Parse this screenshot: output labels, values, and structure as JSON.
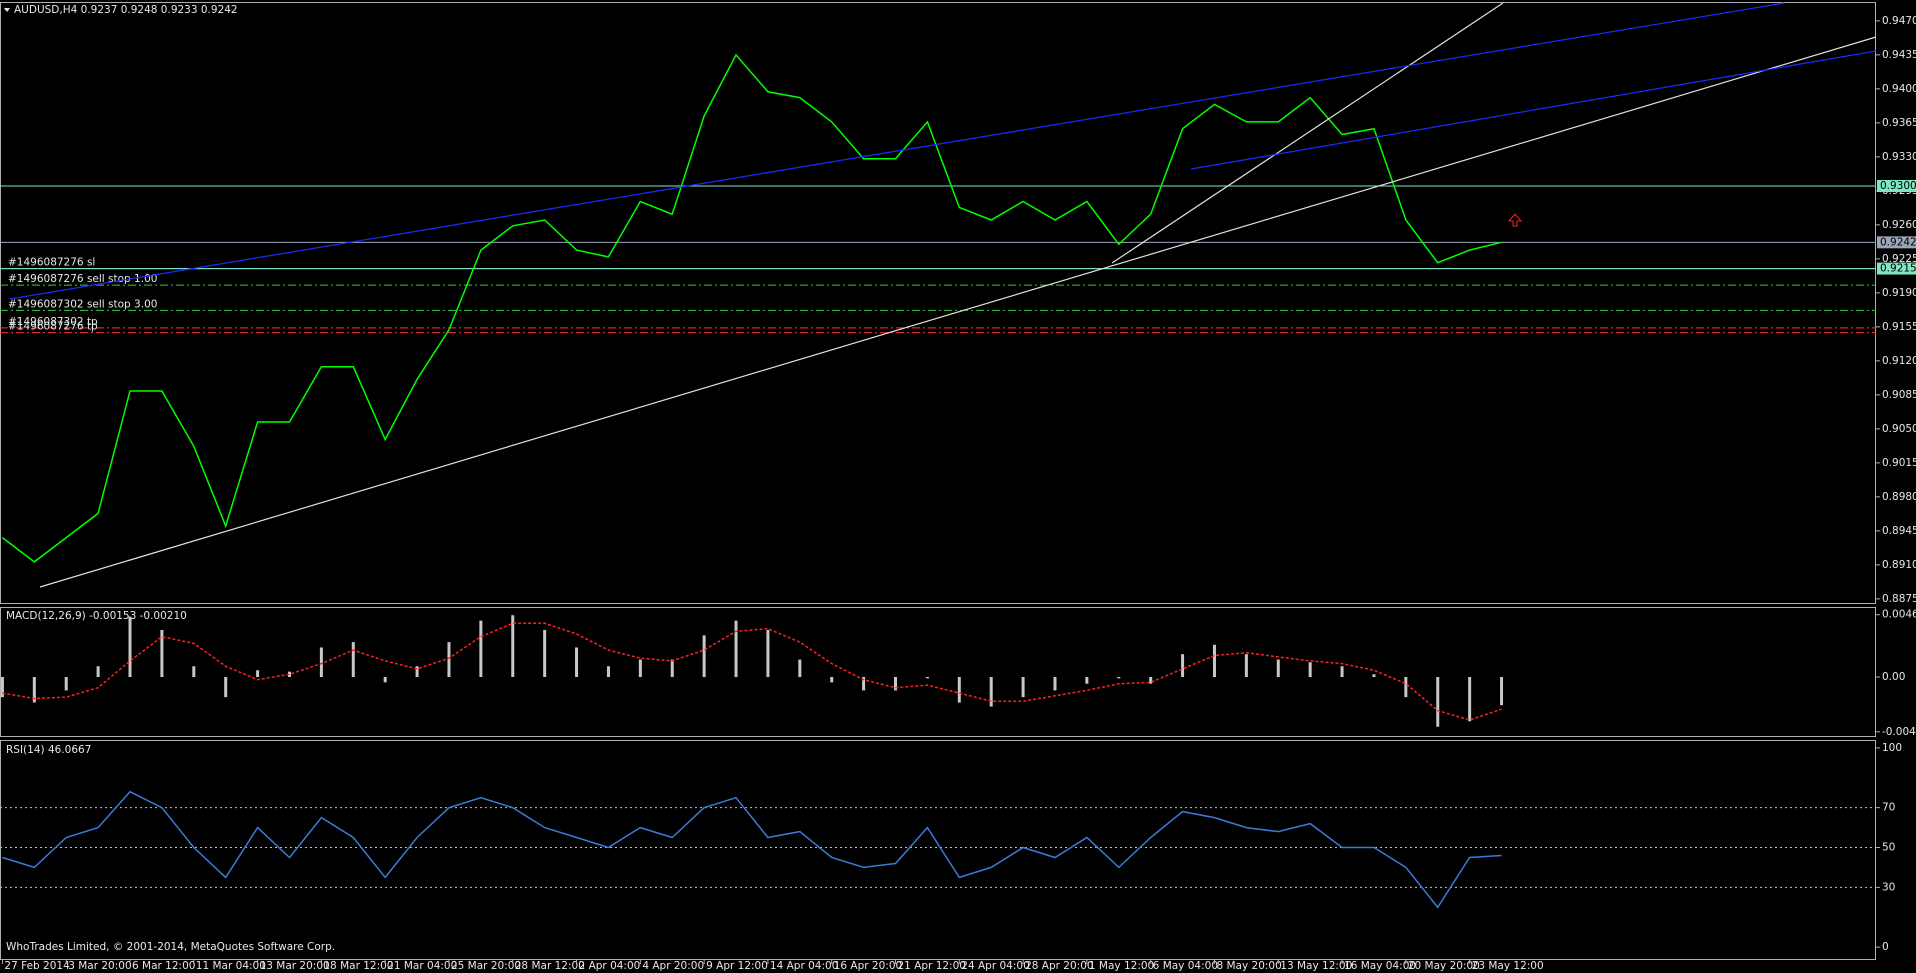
{
  "chart_data": [
    {
      "type": "line",
      "title": "AUDUSD,H4 0.9237 0.9248 0.9233 0.9242",
      "x": [
        0,
        0.5,
        1,
        1.5,
        2,
        2.5,
        3,
        3.5,
        4,
        4.5,
        5,
        5.5,
        6,
        6.5,
        7,
        7.5,
        8,
        8.5,
        9,
        9.5,
        10,
        10.5,
        11,
        11.5,
        12,
        12.5,
        13,
        13.5,
        14,
        14.5,
        15,
        15.5,
        16,
        16.5,
        17,
        17.5,
        18,
        18.5,
        19,
        19.5,
        20,
        20.5,
        21,
        21.5,
        22,
        22.5,
        23,
        23.5
      ],
      "series": [
        {
          "color": "#00ff00",
          "values": [
            0.8938,
            0.8913,
            0.8938,
            0.8963,
            0.9089,
            0.9089,
            0.9032,
            0.895,
            0.9057,
            0.9057,
            0.9114,
            0.9114,
            0.9039,
            0.9101,
            0.9152,
            0.9234,
            0.9259,
            0.9265,
            0.9234,
            0.9227,
            0.9284,
            0.9271,
            0.9372,
            0.9435,
            0.9397,
            0.9391,
            0.9366,
            0.9328,
            0.9328,
            0.9366,
            0.9278,
            0.9265,
            0.9284,
            0.9265,
            0.9284,
            0.924,
            0.9271,
            0.9359,
            0.9384,
            0.9366,
            0.9366,
            0.9391,
            0.9353,
            0.9359,
            0.9265,
            0.9221,
            0.9234,
            0.9242
          ]
        }
      ],
      "xlim": [
        -0.038,
        29.37
      ],
      "ylim": [
        0.887,
        0.9489
      ],
      "yticks": [
        0.8875,
        {
          "value": 0.891,
          "label": "0.8910"
        },
        0.8945,
        {
          "value": 0.898,
          "label": "0.8980"
        },
        0.9015,
        {
          "value": 0.905,
          "label": "0.9050"
        },
        0.9085,
        {
          "value": 0.912,
          "label": "0.9120"
        },
        0.9155,
        {
          "value": 0.919,
          "label": "0.9190"
        },
        0.9225,
        {
          "value": 0.926,
          "label": "0.9260"
        },
        0.9295,
        {
          "value": 0.933,
          "label": "0.9330"
        },
        0.9365,
        {
          "value": 0.94,
          "label": "0.9400"
        },
        0.9435,
        {
          "value": 0.947,
          "label": "0.9470"
        }
      ],
      "levels": [
        {
          "value": 0.93,
          "label": "0.9300",
          "color": "#7fe6c4"
        },
        {
          "value": 0.9242,
          "label": "0.9242",
          "color": "#9aa6b8"
        },
        {
          "value": 0.9215,
          "label": "0.9215",
          "color": "#7fe6c4"
        }
      ],
      "orders": [
        {
          "label": "#1496087276 sl",
          "value": 0.9215,
          "color": "#7fe6c4",
          "style": "solid"
        },
        {
          "label": "#1496087276 sell stop 1.00",
          "value": 0.9198,
          "color": "#32cd32",
          "style": "dashed"
        },
        {
          "label": "#1496087302 sell stop 3.00",
          "value": 0.9172,
          "color": "#32cd32",
          "style": "dashed"
        },
        {
          "label": "#1496087302 tp",
          "value": 0.9154,
          "color": "#ff3030",
          "style": "dashed"
        },
        {
          "label": "#1496087276 tp",
          "value": 0.9149,
          "color": "#ff3030",
          "style": "dashed"
        }
      ]
    },
    {
      "type": "macd",
      "title": "MACD(12,26,9) -0.00153 -0.00210",
      "x": [
        0,
        0.5,
        1,
        1.5,
        2,
        2.5,
        3,
        3.5,
        4,
        4.5,
        5,
        5.5,
        6,
        6.5,
        7,
        7.5,
        8,
        8.5,
        9,
        9.5,
        10,
        10.5,
        11,
        11.5,
        12,
        12.5,
        13,
        13.5,
        14,
        14.5,
        15,
        15.5,
        16,
        16.5,
        17,
        17.5,
        18,
        18.5,
        19,
        19.5,
        20,
        20.5,
        21,
        21.5,
        22,
        22.5,
        23,
        23.5
      ],
      "series": [
        {
          "kind": "histogram",
          "color": "#c8c8c8",
          "values": [
            -0.0015,
            -0.0019,
            -0.001,
            0.0008,
            0.0045,
            0.0035,
            0.0008,
            -0.0015,
            0.0005,
            0.0004,
            0.0022,
            0.0026,
            -0.0004,
            0.0008,
            0.0026,
            0.0042,
            0.0046,
            0.0035,
            0.0022,
            0.0008,
            0.0013,
            0.0013,
            0.0031,
            0.0042,
            0.0035,
            0.0013,
            -0.0004,
            -0.001,
            -0.001,
            -0.0001,
            -0.0019,
            -0.0022,
            -0.0015,
            -0.001,
            -0.0005,
            -0.0001,
            -0.0005,
            0.0017,
            0.0024,
            0.0017,
            0.0013,
            0.0011,
            0.0008,
            0.0002,
            -0.0015,
            -0.0037,
            -0.0033,
            -0.0021
          ]
        },
        {
          "kind": "signal",
          "color": "#ff2020",
          "values": [
            -0.0012,
            -0.0016,
            -0.0015,
            -0.0008,
            0.0012,
            0.003,
            0.0025,
            0.0008,
            -0.0002,
            0.0002,
            0.001,
            0.002,
            0.0012,
            0.0006,
            0.0014,
            0.003,
            0.004,
            0.004,
            0.0032,
            0.002,
            0.0014,
            0.0012,
            0.002,
            0.0034,
            0.0036,
            0.0026,
            0.001,
            -0.0002,
            -0.0008,
            -0.0006,
            -0.0012,
            -0.0018,
            -0.0018,
            -0.0014,
            -0.001,
            -0.0005,
            -0.0004,
            0.0006,
            0.0016,
            0.0018,
            0.0015,
            0.0012,
            0.001,
            0.0005,
            -0.0005,
            -0.0025,
            -0.0032,
            -0.0024
          ]
        }
      ],
      "xlim": [
        -0.038,
        29.37
      ],
      "ylim": [
        -0.00446,
        0.00519
      ],
      "yticks": [
        0.00464,
        {
          "value": 0,
          "label": "0.00"
        },
        -0.00408
      ]
    },
    {
      "type": "rsi",
      "title": "RSI(14) 46.0667",
      "x": [
        0,
        0.5,
        1,
        1.5,
        2,
        2.5,
        3,
        3.5,
        4,
        4.5,
        5,
        5.5,
        6,
        6.5,
        7,
        7.5,
        8,
        8.5,
        9,
        9.5,
        10,
        10.5,
        11,
        11.5,
        12,
        12.5,
        13,
        13.5,
        14,
        14.5,
        15,
        15.5,
        16,
        16.5,
        17,
        17.5,
        18,
        18.5,
        19,
        19.5,
        20,
        20.5,
        21,
        21.5,
        22,
        22.5,
        23,
        23.5
      ],
      "series": [
        {
          "color": "#3a7bd5",
          "values": [
            45,
            40,
            55,
            60,
            78,
            70,
            50,
            35,
            60,
            45,
            65,
            55,
            35,
            55,
            70,
            75,
            70,
            60,
            55,
            50,
            60,
            55,
            70,
            75,
            55,
            58,
            45,
            40,
            42,
            60,
            35,
            40,
            50,
            45,
            55,
            40,
            55,
            68,
            65,
            60,
            58,
            62,
            50,
            50,
            40,
            20,
            45,
            46
          ]
        }
      ],
      "xlim": [
        -0.038,
        29.37
      ],
      "ylim": [
        -6.1,
        103.7
      ],
      "yticks": [
        100,
        70,
        50,
        30,
        0
      ],
      "dotted_levels": [
        70,
        50,
        30
      ],
      "xticks": [
        {
          "value": 0,
          "label": "27 Feb 2014"
        },
        {
          "value": 1,
          "label": "3 Mar 20:00"
        },
        {
          "value": 2,
          "label": "6 Mar 12:00"
        },
        {
          "value": 3,
          "label": "11 Mar 04:00"
        },
        {
          "value": 4,
          "label": "13 Mar 20:00"
        },
        {
          "value": 5,
          "label": "18 Mar 12:00"
        },
        {
          "value": 6,
          "label": "21 Mar 04:00"
        },
        {
          "value": 7,
          "label": "25 Mar 20:00"
        },
        {
          "value": 8,
          "label": "28 Mar 12:00"
        },
        {
          "value": 9,
          "label": "2 Apr 04:00"
        },
        {
          "value": 10,
          "label": "4 Apr 20:00"
        },
        {
          "value": 11,
          "label": "9 Apr 12:00"
        },
        {
          "value": 12,
          "label": "14 Apr 04:00"
        },
        {
          "value": 13,
          "label": "16 Apr 20:00"
        },
        {
          "value": 14,
          "label": "21 Apr 12:00"
        },
        {
          "value": 15,
          "label": "24 Apr 04:00"
        },
        {
          "value": 16,
          "label": "28 Apr 20:00"
        },
        {
          "value": 17,
          "label": "1 May 12:00"
        },
        {
          "value": 18,
          "label": "6 May 04:00"
        },
        {
          "value": 19,
          "label": "8 May 20:00"
        },
        {
          "value": 20,
          "label": "13 May 12:00"
        },
        {
          "value": 21,
          "label": "16 May 04:00"
        },
        {
          "value": 22,
          "label": "20 May 20:00"
        },
        {
          "value": 23,
          "label": "23 May 12:00"
        }
      ]
    }
  ],
  "footer": "WhoTrades Limited, © 2001-2014, MetaQuotes Software Corp."
}
